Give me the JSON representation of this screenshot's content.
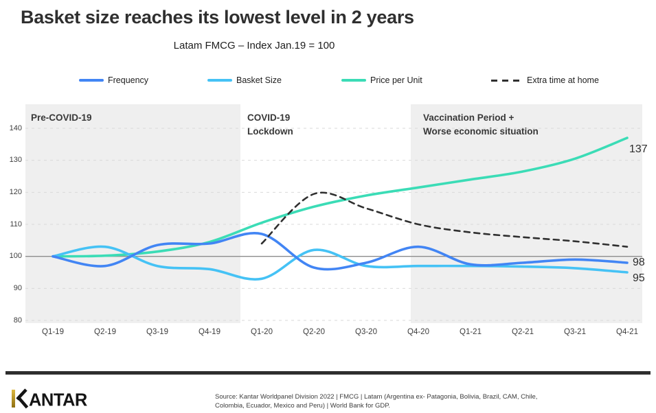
{
  "header": {
    "title": "Basket size reaches its lowest level in 2 years",
    "subtitle": "Latam FMCG – Index Jan.19 = 100"
  },
  "legend": [
    {
      "label": "Frequency",
      "color": "#4285f4",
      "style": "solid"
    },
    {
      "label": "Basket Size",
      "color": "#45c2f5",
      "style": "solid"
    },
    {
      "label": "Price per Unit",
      "color": "#3bdcb6",
      "style": "solid"
    },
    {
      "label": "Extra time at home",
      "color": "#2f2f2f",
      "style": "dashed"
    }
  ],
  "chart_data": {
    "type": "line",
    "categories": [
      "Q1-19",
      "Q2-19",
      "Q3-19",
      "Q4-19",
      "Q1-20",
      "Q2-20",
      "Q3-20",
      "Q4-20",
      "Q1-21",
      "Q2-21",
      "Q3-21",
      "Q4-21"
    ],
    "series": [
      {
        "name": "Frequency",
        "color": "#4285f4",
        "dashed": false,
        "values": [
          100,
          97,
          103.5,
          104,
          107,
          96.5,
          98,
          103,
          97.5,
          98,
          99,
          98
        ]
      },
      {
        "name": "Basket Size",
        "color": "#45c2f5",
        "dashed": false,
        "values": [
          100,
          103,
          97,
          96,
          93,
          102,
          97,
          97,
          97,
          96.8,
          96.3,
          95
        ]
      },
      {
        "name": "Price per Unit",
        "color": "#3bdcb6",
        "dashed": false,
        "values": [
          100,
          100.2,
          101.5,
          104.5,
          110.5,
          115.5,
          119,
          121.5,
          124,
          126.5,
          130.5,
          137
        ]
      },
      {
        "name": "Extra time at home",
        "color": "#2f2f2f",
        "dashed": true,
        "values": [
          null,
          null,
          null,
          null,
          104,
          119.5,
          115,
          110,
          107.5,
          106,
          104.7,
          103
        ]
      }
    ],
    "title": "Basket size reaches its lowest level in 2 years",
    "subtitle": "Latam FMCG – Index Jan.19 = 100",
    "xlabel": "",
    "ylabel": "",
    "ylim": [
      80,
      147
    ],
    "yticks": [
      80,
      90,
      100,
      110,
      120,
      130,
      140
    ],
    "baseline": 100,
    "grid": "dashed-horizontal",
    "legend_position": "top",
    "regions": [
      {
        "label": "Pre-COVID-19",
        "quarters": "Q1-19 to Q4-19",
        "shaded": true
      },
      {
        "label": "COVID-19\nLockdown",
        "quarters": "Q1-20 to Q3-20",
        "shaded": false
      },
      {
        "label": "Vaccination Period +\nWorse economic situation",
        "quarters": "Q4-20 to Q4-21",
        "shaded": true
      }
    ],
    "end_labels": [
      {
        "series": "Price per Unit",
        "value": 137
      },
      {
        "series": "Frequency",
        "value": 98
      },
      {
        "series": "Basket Size",
        "value": 95
      }
    ],
    "colors": {
      "region_shade": "#efefef",
      "gridline": "#d9d9d9",
      "baseline": "#8c8c8c"
    }
  },
  "footer": {
    "logo_text": "ANTAR",
    "logo_name": "Kantar",
    "accent_color": "#c79f2d",
    "source_line1": "Source: Kantar Worldpanel Division 2022 | FMCG | Latam (Argentina ex- Patagonia, Bolivia, Brazil, CAM, Chile,",
    "source_line2": "Colombia, Ecuador, Mexico and Peru) | World Bank for GDP."
  }
}
